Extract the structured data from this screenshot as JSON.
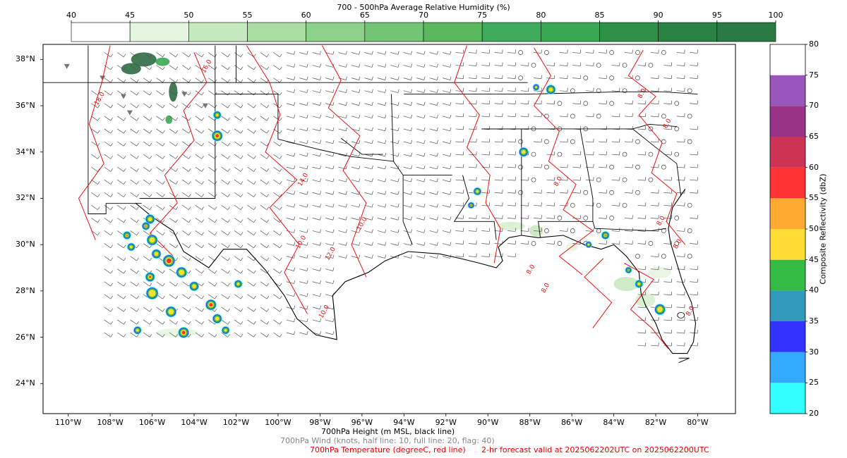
{
  "humidity_colorbar": {
    "title": "700 - 500hPa Average Relative Humidity (%)",
    "ticks": [
      "40",
      "45",
      "50",
      "55",
      "60",
      "65",
      "70",
      "75",
      "80",
      "85",
      "90",
      "95",
      "100"
    ],
    "colors": [
      "#ffffff",
      "#e5f5e0",
      "#c7e9c0",
      "#a8dca0",
      "#8dd08a",
      "#74c476",
      "#5cb85f",
      "#41ab5d",
      "#3aa852",
      "#2f9147",
      "#2a8244",
      "#2b7a45",
      "#2d6b45"
    ]
  },
  "reflectivity_colorbar": {
    "title": "Composite Reflectivity (dbZ)",
    "ticks": [
      "20",
      "25",
      "30",
      "35",
      "40",
      "45",
      "50",
      "55",
      "60",
      "65",
      "70",
      "75",
      "80"
    ],
    "colors": [
      "#33ffff",
      "#33aaff",
      "#3333ff",
      "#3399bb",
      "#33bb44",
      "#ffdd33",
      "#ffaa33",
      "#ff3333",
      "#cc3355",
      "#993388",
      "#9955bb",
      "#ffffff"
    ]
  },
  "map": {
    "lat_labels": [
      "38°N",
      "36°N",
      "34°N",
      "32°N",
      "30°N",
      "28°N",
      "26°N",
      "24°N"
    ],
    "lon_labels": [
      "110°W",
      "108°W",
      "106°W",
      "104°W",
      "102°W",
      "100°W",
      "98°W",
      "96°W",
      "94°W",
      "92°W",
      "90°W",
      "88°W",
      "86°W",
      "84°W",
      "82°W",
      "80°W"
    ],
    "temperature_contour_labels": [
      "18.0",
      "16.0",
      "14.0",
      "12.0",
      "10.0",
      "10.0",
      "10.0",
      "8.0",
      "8.0",
      "8.0",
      "8.0",
      "8.0",
      "8.0",
      "8.0",
      "8.0"
    ],
    "colors": {
      "temperature": "#ee1111",
      "height": "#000000",
      "wind": "#555555",
      "coast": "#000000"
    }
  },
  "captions": {
    "height": "700hPa Height (m MSL, black line)",
    "wind": "700hPa Wind (knots, half line: 10, full line: 20, flag: 40)",
    "temperature": "700hPa Temperature (degreeC, red line)",
    "valid": "2-hr forecast valid at 2025062202UTC on 2025062200UTC"
  }
}
